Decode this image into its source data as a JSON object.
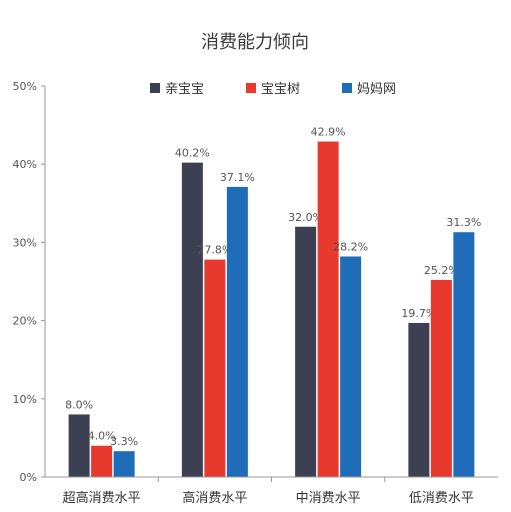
{
  "chart_data": {
    "type": "bar",
    "title": "消费能力倾向",
    "categories": [
      "超高消费水平",
      "高消费水平",
      "中消费水平",
      "低消费水平"
    ],
    "series": [
      {
        "name": "亲宝宝",
        "color": "#3d3f52",
        "values": [
          8.0,
          40.2,
          32.0,
          19.7
        ],
        "labels": [
          "8.0%",
          "40.2%",
          "32.0%",
          "19.7%"
        ]
      },
      {
        "name": "宝宝树",
        "color": "#e8392f",
        "values": [
          4.0,
          27.8,
          42.9,
          25.2
        ],
        "labels": [
          "4.0%",
          "27.8%",
          "42.9%",
          "25.2%"
        ]
      },
      {
        "name": "妈妈网",
        "color": "#1f6cb8",
        "values": [
          3.3,
          37.1,
          28.2,
          31.3
        ],
        "labels": [
          "3.3%",
          "37.1%",
          "28.2%",
          "31.3%"
        ]
      }
    ],
    "ylim": [
      0,
      50
    ],
    "yticks": [
      0,
      10,
      20,
      30,
      40,
      50
    ],
    "ytick_labels": [
      "0%",
      "10%",
      "20%",
      "30%",
      "40%",
      "50%"
    ],
    "legend_position": "top",
    "grid": false
  }
}
